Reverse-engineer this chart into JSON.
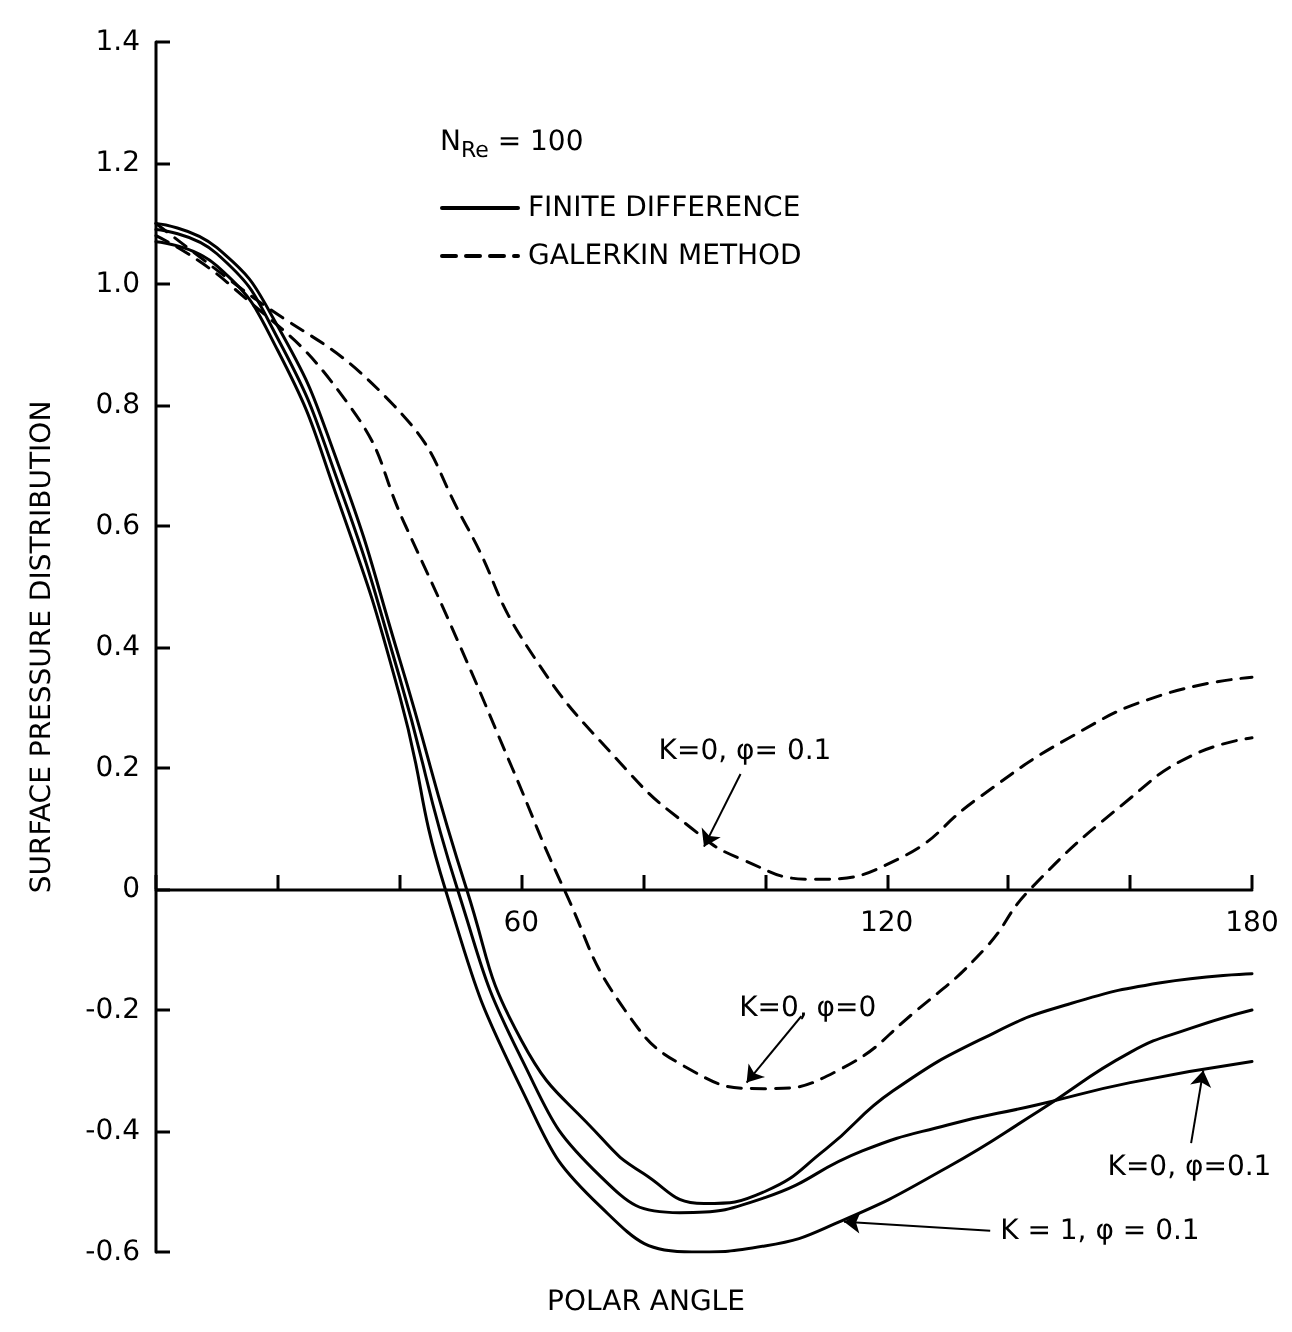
{
  "chart_data": {
    "type": "line",
    "xlabel": "POLAR ANGLE",
    "ylabel": "SURFACE PRESSURE DISTRIBUTION",
    "legend_title": "N$_{Re}$ = 100",
    "legend": "top",
    "grid": false,
    "marker": "none",
    "xlim": [
      0,
      180
    ],
    "xticks": [
      {
        "value": 0,
        "label": null
      },
      {
        "value": 20,
        "label": null
      },
      {
        "value": 40,
        "label": null
      },
      60,
      {
        "value": 80,
        "label": null
      },
      {
        "value": 100,
        "label": null
      },
      120,
      {
        "value": 140,
        "label": null
      },
      {
        "value": 160,
        "label": null
      },
      180
    ],
    "ylim": [
      -0.6,
      1.4
    ],
    "yticks": [
      -0.6,
      -0.4,
      -0.2,
      0,
      0.2,
      0.4,
      0.6,
      0.8,
      {
        "value": 1,
        "label": "1.0"
      },
      1.2,
      1.4
    ],
    "series": [
      {
        "name": "FINITE DIFFERENCE",
        "color": "#000000",
        "line_style": "solid",
        "x": [
          0,
          10,
          20,
          30,
          40,
          51,
          60,
          73,
          80,
          90,
          100,
          110,
          121,
          138,
          150,
          165,
          180
        ],
        "values": [
          1.1,
          1.06,
          0.93,
          0.7,
          0.38,
          0,
          -0.25,
          -0.41,
          -0.47,
          -0.52,
          -0.5,
          -0.43,
          -0.334,
          -0.236,
          -0.19,
          -0.155,
          -0.14
        ]
      },
      {
        "color": "#000000",
        "line_style": "solid",
        "x": [
          0,
          10,
          20,
          30,
          40,
          49.5,
          60,
          73,
          86,
          100,
          116,
          130,
          144.6,
          160,
          180
        ],
        "values": [
          1.09,
          1.05,
          0.91,
          0.67,
          0.35,
          0,
          -0.28,
          -0.475,
          -0.535,
          -0.51,
          -0.433,
          -0.39,
          -0.357,
          -0.32,
          -0.285
        ]
      },
      {
        "color": "#000000",
        "line_style": "solid",
        "x": [
          0,
          10,
          20,
          30,
          40,
          47.5,
          60,
          73,
          88,
          100,
          112.7,
          130,
          145,
          160,
          170,
          180
        ],
        "values": [
          1.07,
          1.03,
          0.89,
          0.64,
          0.32,
          0,
          -0.33,
          -0.525,
          -0.6,
          -0.59,
          -0.548,
          -0.46,
          -0.367,
          -0.27,
          -0.23,
          -0.2
        ]
      },
      {
        "name": "GALERKIN METHOD",
        "color": "#000000",
        "line_style": "dashed",
        "x": [
          0,
          12,
          31.7,
          41,
          50,
          58.5,
          67,
          77,
          88,
          100,
          112,
          125,
          136,
          143.6,
          160,
          170,
          180
        ],
        "values": [
          1.08,
          1.0,
          0.8,
          0.6,
          0.4,
          0.2,
          0,
          -0.2,
          -0.3,
          -0.33,
          -0.3,
          -0.2,
          -0.1,
          0,
          0.15,
          0.22,
          0.25
        ]
      },
      {
        "color": "#000000",
        "line_style": "dashed",
        "x": [
          0,
          13,
          39,
          51,
          61,
          77,
          88,
          96,
          108,
          122,
          135,
          150,
          165,
          180
        ],
        "values": [
          1.1,
          1.0,
          0.8,
          0.6,
          0.4,
          0.2,
          0.1,
          0.05,
          0.016,
          0.05,
          0.15,
          0.25,
          0.32,
          0.35
        ]
      }
    ],
    "annotations": [
      {
        "text": "K=0, φ= 0.1",
        "x": 90,
        "y": 0.07
      },
      {
        "text": "K=0, φ=0",
        "x": 97,
        "y": -0.32
      },
      {
        "text": "K=0, φ=0.1",
        "x": 172,
        "y": -0.3
      },
      {
        "text": "K = 1, φ = 0.1",
        "x": 113,
        "y": -0.55
      }
    ]
  }
}
